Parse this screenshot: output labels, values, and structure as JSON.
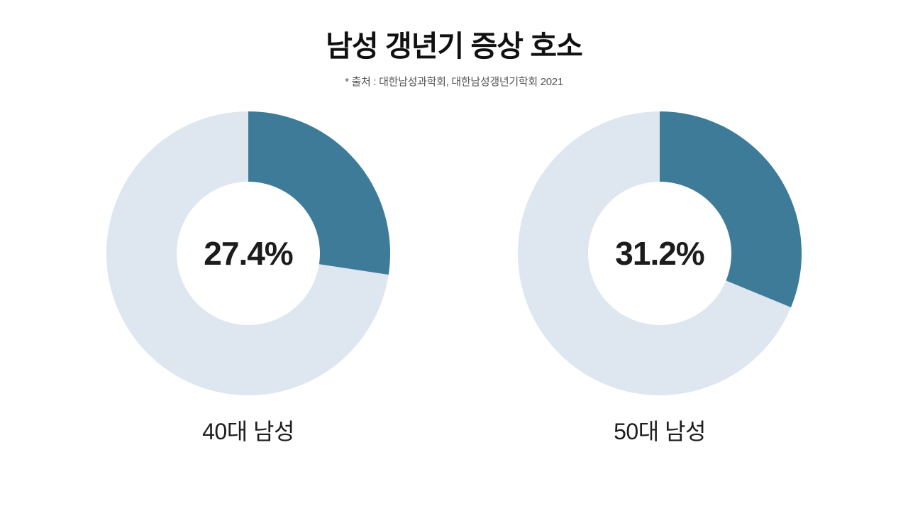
{
  "title": "남성 갱년기 증상 호소",
  "source_note": "* 출처 : 대한남성과학회, 대한남성갱년기학회 2021",
  "chart_data": [
    {
      "type": "pie",
      "variant": "donut",
      "category": "40대 남성",
      "value_percent": 27.4,
      "center_label": "27.4%",
      "slice_color": "#3d7b99",
      "remainder_color": "#dee6f0",
      "hole_color": "#ffffff",
      "start_angle_deg": -90,
      "clockwise": true
    },
    {
      "type": "pie",
      "variant": "donut",
      "category": "50대 남성",
      "value_percent": 31.2,
      "center_label": "31.2%",
      "slice_color": "#3d7b99",
      "remainder_color": "#dee6f0",
      "hole_color": "#ffffff",
      "start_angle_deg": -90,
      "clockwise": true
    }
  ],
  "style": {
    "background": "#ffffff",
    "title_color": "#111111",
    "source_color": "#555555",
    "value_text_color": "#1c1c1c",
    "caption_color": "#1e1e1e"
  }
}
